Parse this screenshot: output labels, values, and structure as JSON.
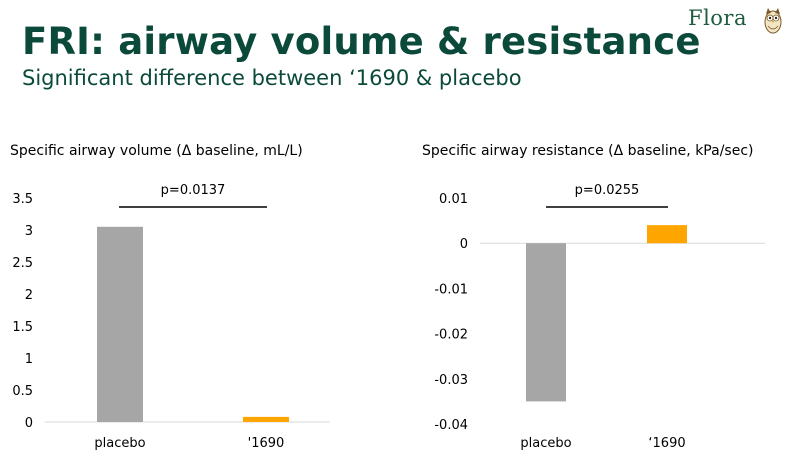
{
  "slide": {
    "title": "FRI: airway volume & resistance",
    "subtitle": "Significant difference between ‘1690 & placebo",
    "logo_text": "Flora",
    "logo_icon": "owl-icon"
  },
  "colors": {
    "placebo": "#a6a6a6",
    "drug": "#ffa500",
    "title": "#0b4a3a",
    "axis": "#d9d9d9"
  },
  "chart_data": [
    {
      "type": "bar",
      "title": "Specific airway volume (Δ baseline, mL/L)",
      "categories": [
        "placebo",
        "'1690"
      ],
      "values": [
        3.05,
        0.08
      ],
      "ylim": [
        0,
        3.5
      ],
      "yticks": [
        0,
        0.5,
        1,
        1.5,
        2,
        2.5,
        3,
        3.5
      ],
      "ytick_labels": [
        "0",
        "0.5",
        "1",
        "1.5",
        "2",
        "2.5",
        "3",
        "3.5"
      ],
      "grid": false,
      "annotation": "p=0.0137"
    },
    {
      "type": "bar",
      "title": "Specific airway resistance (Δ baseline, kPa/sec)",
      "categories": [
        "placebo",
        "‘1690"
      ],
      "values": [
        -0.035,
        0.004
      ],
      "ylim": [
        -0.04,
        0.01
      ],
      "yticks": [
        -0.04,
        -0.03,
        -0.02,
        -0.01,
        0,
        0.01
      ],
      "ytick_labels": [
        "-0.04",
        "-0.03",
        "-0.02",
        "-0.01",
        "0",
        "0.01"
      ],
      "grid": false,
      "annotation": "p=0.0255"
    }
  ]
}
